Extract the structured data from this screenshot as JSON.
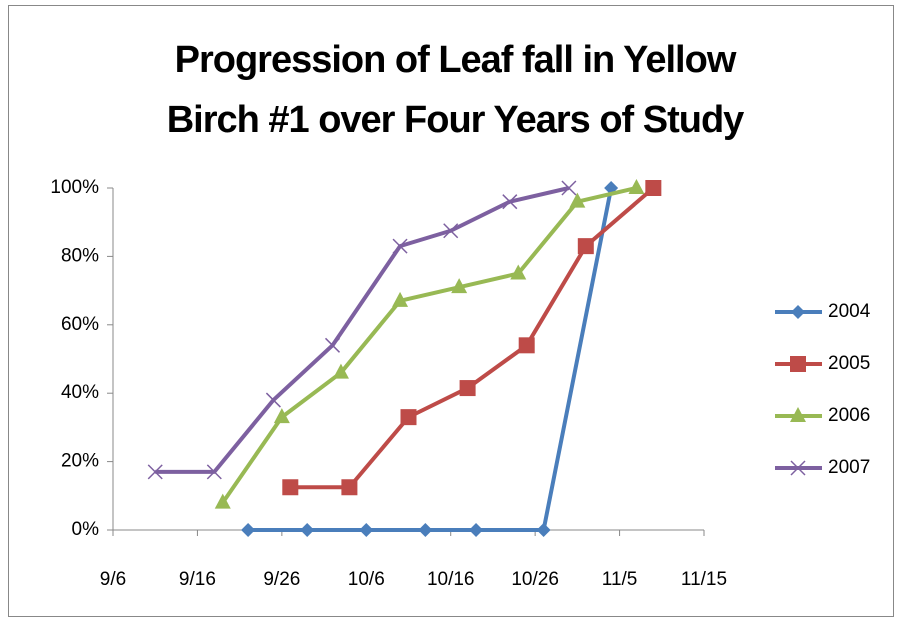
{
  "chart_data": {
    "type": "line",
    "title": "Progression of Leaf fall in Yellow Birch #1 over Four Years of Study",
    "xlim": [
      "9/6",
      "11/15"
    ],
    "xticks": [
      "9/6",
      "9/16",
      "9/26",
      "10/6",
      "10/16",
      "10/26",
      "11/5",
      "11/15"
    ],
    "ylim": [
      0,
      100
    ],
    "yticks": [
      {
        "value": 0,
        "label": "0%"
      },
      {
        "value": 20,
        "label": "20%"
      },
      {
        "value": 40,
        "label": "40%"
      },
      {
        "value": 60,
        "label": "60%"
      },
      {
        "value": 80,
        "label": "80%"
      },
      {
        "value": 100,
        "label": "100%"
      }
    ],
    "legend": "right",
    "series": [
      {
        "name": "2004",
        "color": "#4a7ebb",
        "marker": "diamond",
        "x": [
          "9/22",
          "9/29",
          "10/6",
          "10/13",
          "10/19",
          "10/27",
          "11/4"
        ],
        "values": [
          0,
          0,
          0,
          0,
          0,
          0,
          100
        ]
      },
      {
        "name": "2005",
        "color": "#be4b48",
        "marker": "square",
        "x": [
          "9/27",
          "10/4",
          "10/11",
          "10/18",
          "10/25",
          "11/1",
          "11/9"
        ],
        "values": [
          12.5,
          12.5,
          33,
          41.5,
          54,
          83,
          100
        ]
      },
      {
        "name": "2006",
        "color": "#98b954",
        "marker": "triangle",
        "x": [
          "9/19",
          "9/26",
          "10/3",
          "10/10",
          "10/17",
          "10/24",
          "10/31",
          "11/7"
        ],
        "values": [
          8,
          33,
          46,
          67,
          71,
          75,
          96,
          100
        ]
      },
      {
        "name": "2007",
        "color": "#7d60a0",
        "marker": "x",
        "x": [
          "9/11",
          "9/18",
          "9/25",
          "10/2",
          "10/10",
          "10/16",
          "10/23",
          "10/30"
        ],
        "values": [
          17,
          17,
          38,
          54,
          83,
          87.5,
          96,
          100
        ]
      }
    ]
  }
}
